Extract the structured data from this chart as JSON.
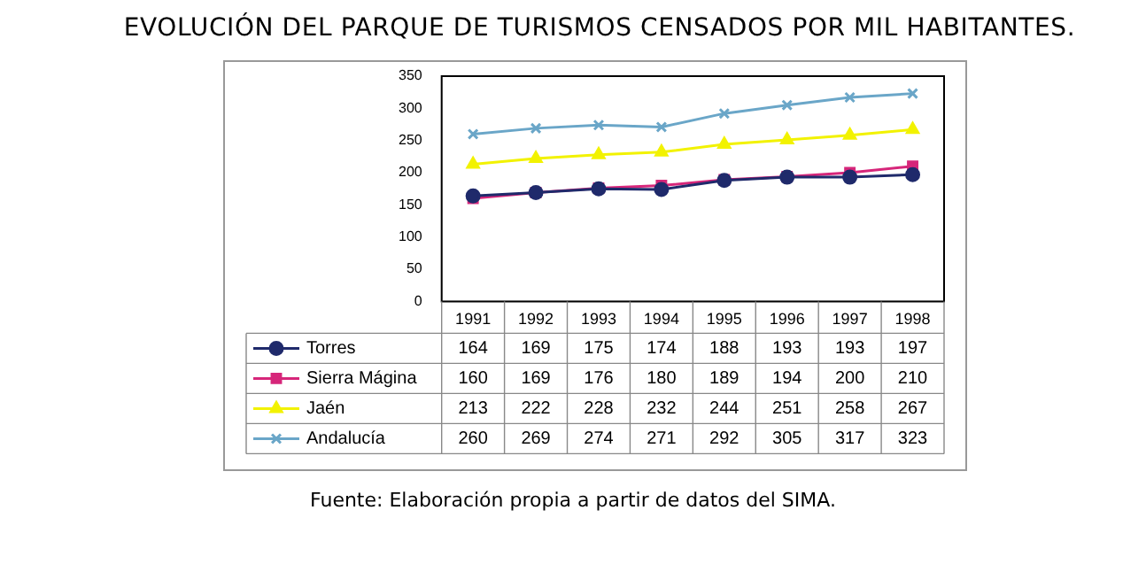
{
  "chart_data": {
    "type": "line",
    "title": "EVOLUCIÓN DEL PARQUE DE TURISMOS CENSADOS POR MIL HABITANTES.",
    "categories": [
      "1991",
      "1992",
      "1993",
      "1994",
      "1995",
      "1996",
      "1997",
      "1998"
    ],
    "series": [
      {
        "name": "Torres",
        "color": "#1f2a6b",
        "marker": "circle",
        "values": [
          164,
          169,
          175,
          174,
          188,
          193,
          193,
          197
        ]
      },
      {
        "name": "Sierra Mágina",
        "color": "#d6267a",
        "marker": "square",
        "values": [
          160,
          169,
          176,
          180,
          189,
          194,
          200,
          210
        ]
      },
      {
        "name": "Jaén",
        "color": "#f2f200",
        "marker": "triangle",
        "values": [
          213,
          222,
          228,
          232,
          244,
          251,
          258,
          267
        ]
      },
      {
        "name": "Andalucía",
        "color": "#6aa6c8",
        "marker": "cross",
        "values": [
          260,
          269,
          274,
          271,
          292,
          305,
          317,
          323
        ]
      }
    ],
    "ylim": [
      0,
      350
    ],
    "yticks": [
      0,
      50,
      100,
      150,
      200,
      250,
      300,
      350
    ],
    "grid": false,
    "legend": "bottom",
    "data_labels": true,
    "annotations": [
      "Fuente: Elaboración propia a partir de datos del SIMA."
    ]
  }
}
